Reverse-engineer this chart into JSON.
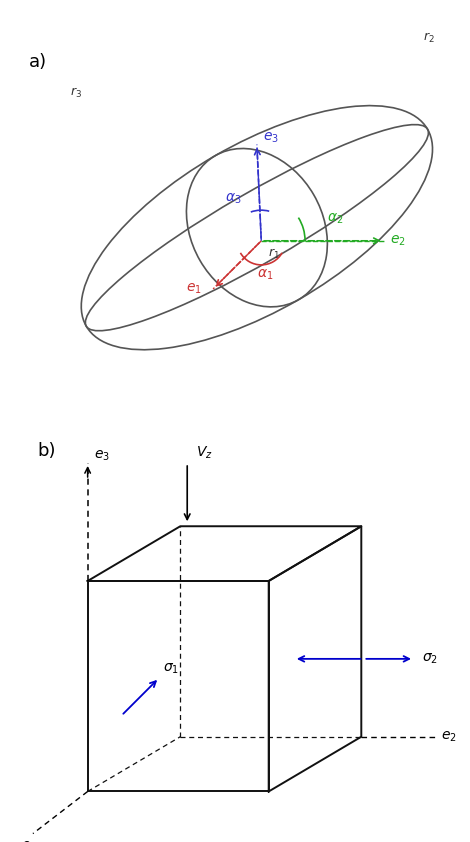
{
  "fig_width": 4.7,
  "fig_height": 8.42,
  "bg_color": "#ffffff",
  "label_a": "a)",
  "label_b": "b)",
  "ellipse_color": "#555555",
  "e1_color": "#cc3333",
  "e2_color": "#22aa22",
  "e3_color": "#3333cc",
  "alpha1_color": "#cc3333",
  "alpha2_color": "#22aa22",
  "alpha3_color": "#3333cc",
  "box_color": "#111111",
  "arrow_blue": "#0000cc",
  "arrow_black": "#000000"
}
